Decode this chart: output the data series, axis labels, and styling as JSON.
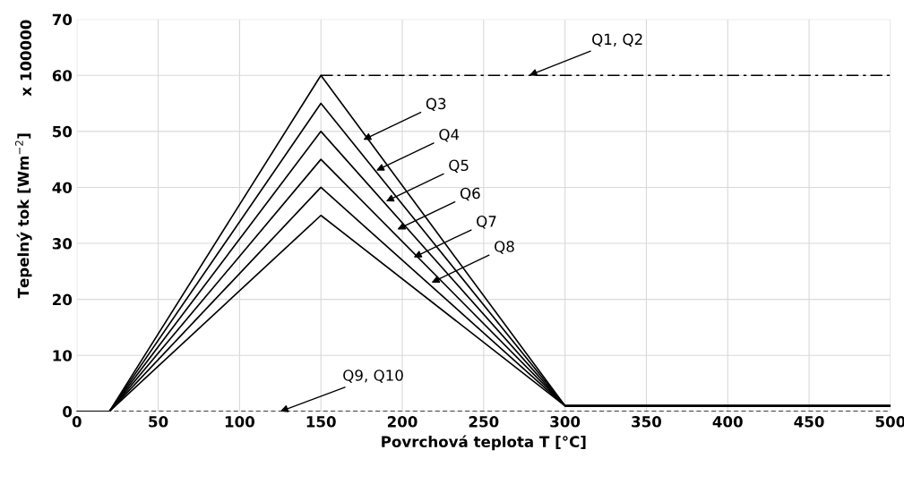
{
  "chart_data": {
    "type": "line",
    "xlabel": "Povrchová teplota T [°C]",
    "ylabel": "Tepelný tok [Wm$^{−2}$]",
    "xlim": [
      0,
      500
    ],
    "ylim": [
      0,
      70
    ],
    "xticks": [
      0,
      50,
      100,
      150,
      200,
      250,
      300,
      350,
      400,
      450,
      500
    ],
    "yticks": [
      0,
      10,
      20,
      30,
      40,
      50,
      60,
      70
    ],
    "grid": true,
    "legend": false,
    "marker": "none",
    "series": [
      {
        "color": "#000000",
        "line_style": "dashdot",
        "x": [
          150,
          500
        ],
        "values": [
          60,
          60
        ]
      },
      {
        "color": "#000000",
        "line_style": "solid",
        "x": [
          0,
          20,
          150,
          300,
          500
        ],
        "values": [
          0,
          0,
          60,
          1,
          1
        ]
      },
      {
        "color": "#000000",
        "line_style": "solid",
        "x": [
          0,
          20,
          150,
          300,
          500
        ],
        "values": [
          0,
          0,
          55,
          1,
          1
        ]
      },
      {
        "color": "#000000",
        "line_style": "solid",
        "x": [
          0,
          20,
          150,
          300,
          500
        ],
        "values": [
          0,
          0,
          50,
          1,
          1
        ]
      },
      {
        "color": "#000000",
        "line_style": "solid",
        "x": [
          0,
          20,
          150,
          300,
          500
        ],
        "values": [
          0,
          0,
          45,
          1,
          1
        ]
      },
      {
        "color": "#000000",
        "line_style": "solid",
        "x": [
          0,
          20,
          150,
          300,
          500
        ],
        "values": [
          0,
          0,
          40,
          1,
          1
        ]
      },
      {
        "color": "#000000",
        "line_style": "solid",
        "x": [
          0,
          20,
          150,
          300,
          500
        ],
        "values": [
          0,
          0,
          35,
          1,
          1
        ]
      },
      {
        "color": "#000000",
        "line_style": "dashed",
        "x": [
          0,
          500
        ],
        "values": [
          0,
          0
        ]
      }
    ],
    "annotations": [
      "x 100000",
      {
        "text": "Q1, Q2",
        "x": 278,
        "y": 60
      },
      {
        "text": "Q3",
        "x": 176,
        "y": 48.5
      },
      {
        "text": "Q4",
        "x": 184,
        "y": 43
      },
      {
        "text": "Q5",
        "x": 190,
        "y": 37.5
      },
      {
        "text": "Q6",
        "x": 197,
        "y": 32.5
      },
      {
        "text": "Q7",
        "x": 207,
        "y": 27.5
      },
      {
        "text": "Q8",
        "x": 218,
        "y": 23
      },
      {
        "text": "Q9, Q10",
        "x": 125,
        "y": 0
      }
    ]
  }
}
